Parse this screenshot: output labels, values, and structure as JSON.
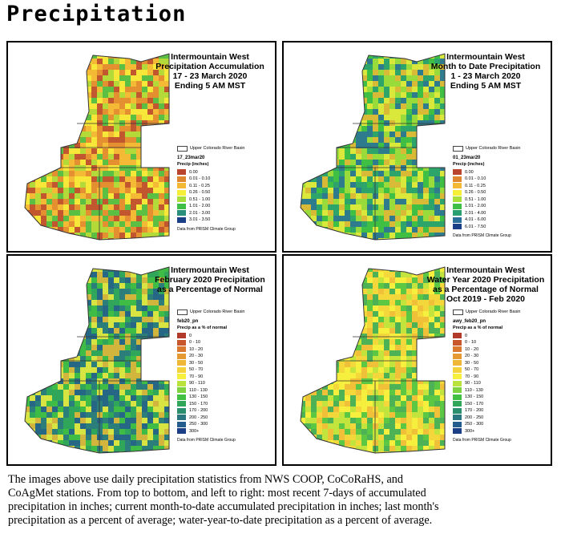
{
  "page_title": "Precipitation",
  "panels": [
    {
      "title_lines": [
        "Intermountain West",
        "Precipitation Accumulation",
        "17 - 23 March 2020",
        "Ending 5 AM MST"
      ],
      "basin_label": "Upper Colorado River Basin",
      "layer_name": "17_23mar20",
      "legend_heading": "Precip (inches)",
      "legend_items": [
        {
          "label": "0.00",
          "color": "#b9452e"
        },
        {
          "label": "0.01 - 0.10",
          "color": "#e0882f"
        },
        {
          "label": "0.11 - 0.25",
          "color": "#f3b835"
        },
        {
          "label": "0.26 - 0.50",
          "color": "#f6ef3a"
        },
        {
          "label": "0.51 - 1.00",
          "color": "#a8df3a"
        },
        {
          "label": "1.01 - 2.00",
          "color": "#3fbf45"
        },
        {
          "label": "2.01 - 3.00",
          "color": "#2a8f7a"
        },
        {
          "label": "3.01 - 3.50",
          "color": "#1b3f86"
        }
      ],
      "credit": "Data from PRISM Climate Group",
      "map_palette": [
        "#f3b835",
        "#e0882f",
        "#f6ef3a",
        "#a8df3a",
        "#3fbf45",
        "#b9452e"
      ]
    },
    {
      "title_lines": [
        "Intermountain West",
        "Month to Date Precipitation",
        "1 - 23 March 2020",
        "Ending 5 AM MST"
      ],
      "basin_label": "Upper Colorado River Basin",
      "layer_name": "01_23mar20",
      "legend_heading": "Precip (inches)",
      "legend_items": [
        {
          "label": "0.00",
          "color": "#b9452e"
        },
        {
          "label": "0.01 - 0.10",
          "color": "#e0882f"
        },
        {
          "label": "0.11 - 0.25",
          "color": "#f3b835"
        },
        {
          "label": "0.26 - 0.50",
          "color": "#f6ef3a"
        },
        {
          "label": "0.51 - 1.00",
          "color": "#a8df3a"
        },
        {
          "label": "1.01 - 2.00",
          "color": "#3fbf45"
        },
        {
          "label": "2.01 - 4.00",
          "color": "#2a9f70"
        },
        {
          "label": "4.01 - 6.00",
          "color": "#2a6f9a"
        },
        {
          "label": "6.01 - 7.50",
          "color": "#1b3f86"
        }
      ],
      "credit": "Data from PRISM Climate Group",
      "map_palette": [
        "#3fbf45",
        "#a8df3a",
        "#2a9f70",
        "#f6ef3a",
        "#f3b835",
        "#2a6f9a"
      ]
    },
    {
      "title_lines": [
        "Intermountain West",
        "February 2020 Precipitation",
        "as a Percentage of Normal"
      ],
      "basin_label": "Upper Colorado River Basin",
      "layer_name": "feb20_pn",
      "legend_heading": "Precip as a % of normal",
      "legend_items": [
        {
          "label": "0",
          "color": "#b23a2a"
        },
        {
          "label": "0 - 10",
          "color": "#c8572e"
        },
        {
          "label": "10 - 20",
          "color": "#d97a30"
        },
        {
          "label": "20 - 30",
          "color": "#e69a33"
        },
        {
          "label": "30 - 50",
          "color": "#efb737"
        },
        {
          "label": "50 - 70",
          "color": "#f3d23b"
        },
        {
          "label": "70 - 90",
          "color": "#f6ef3d"
        },
        {
          "label": "90 - 110",
          "color": "#b9e23c"
        },
        {
          "label": "110 - 130",
          "color": "#7dd23f"
        },
        {
          "label": "130 - 150",
          "color": "#41c043"
        },
        {
          "label": "150 - 170",
          "color": "#2fa65a"
        },
        {
          "label": "170 - 200",
          "color": "#2b8f6d"
        },
        {
          "label": "200 - 250",
          "color": "#2a7780"
        },
        {
          "label": "250 - 300",
          "color": "#245c8e"
        },
        {
          "label": "300+",
          "color": "#1b3f86"
        }
      ],
      "credit": "Data from PRISM Climate Group",
      "map_palette": [
        "#2fa65a",
        "#41c043",
        "#f6ef3d",
        "#efb737",
        "#245c8e",
        "#2a7780"
      ]
    },
    {
      "title_lines": [
        "Intermountain West",
        "Water Year 2020 Precipitation",
        "as a Percentage of Normal",
        "Oct 2019 - Feb 2020"
      ],
      "basin_label": "Upper Colorado River Basin",
      "layer_name": "awy_feb20_pn",
      "legend_heading": "Precip as a % of normal",
      "legend_items": [
        {
          "label": "0",
          "color": "#b23a2a"
        },
        {
          "label": "0 - 10",
          "color": "#c8572e"
        },
        {
          "label": "10 - 20",
          "color": "#d97a30"
        },
        {
          "label": "20 - 30",
          "color": "#e69a33"
        },
        {
          "label": "30 - 50",
          "color": "#efb737"
        },
        {
          "label": "50 - 70",
          "color": "#f3d23b"
        },
        {
          "label": "70 - 90",
          "color": "#f6ef3d"
        },
        {
          "label": "90 - 110",
          "color": "#b9e23c"
        },
        {
          "label": "110 - 130",
          "color": "#7dd23f"
        },
        {
          "label": "130 - 150",
          "color": "#41c043"
        },
        {
          "label": "150 - 170",
          "color": "#2fa65a"
        },
        {
          "label": "170 - 200",
          "color": "#2b8f6d"
        },
        {
          "label": "200 - 250",
          "color": "#2a7780"
        },
        {
          "label": "250 - 300",
          "color": "#245c8e"
        },
        {
          "label": "300+",
          "color": "#1b3f86"
        }
      ],
      "credit": "Data from PRISM Climate Group",
      "map_palette": [
        "#f6ef3d",
        "#b9e23c",
        "#efb737",
        "#41c043",
        "#f3d23b",
        "#2fa65a"
      ]
    }
  ],
  "caption_lines": [
    "The images above use daily precipitation statistics from NWS COOP, CoCoRaHS, and",
    "CoAgMet stations. From top to bottom, and left to right: most recent 7-days of accumulated",
    "precipitation in inches; current month-to-date accumulated precipitation in inches; last month's",
    "precipitation as a percent of average; water-year-to-date precipitation as a percent of average."
  ]
}
